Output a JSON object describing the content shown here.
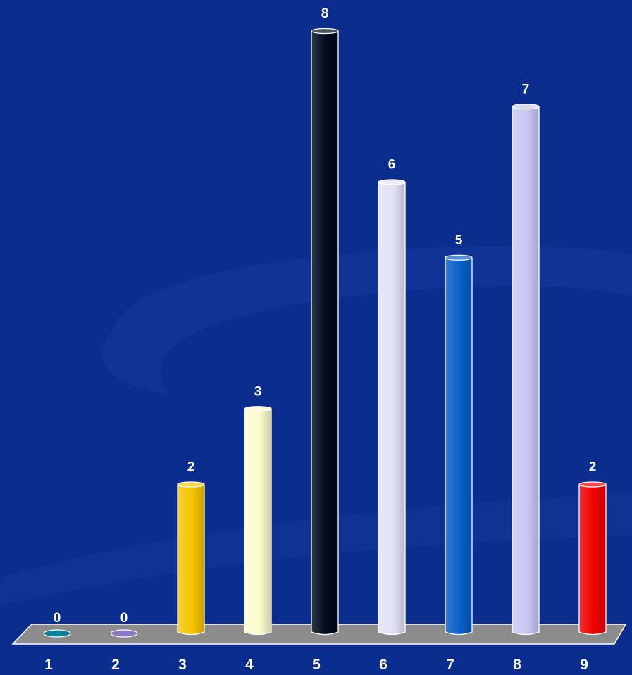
{
  "chart_data": {
    "type": "bar",
    "categories": [
      "1",
      "2",
      "3",
      "4",
      "5",
      "6",
      "7",
      "8",
      "9"
    ],
    "values": [
      0,
      0,
      2,
      3,
      8,
      6,
      5,
      7,
      2
    ],
    "data_labels": [
      "0",
      "0",
      "2",
      "3",
      "8",
      "6",
      "5",
      "7",
      "2"
    ],
    "colors": [
      "#0e7f98",
      "#8a79c8",
      "#f6c400",
      "#fbfbcd",
      "#000a1e",
      "#e2e2f6",
      "#0a5fc8",
      "#c8c8f2",
      "#f00000"
    ],
    "ylim": [
      0,
      8
    ],
    "grid": false,
    "legend": "none",
    "title": "",
    "xlabel": "",
    "ylabel": "",
    "style": "3d-cylinder"
  },
  "theme": {
    "background": "#0a2d8e",
    "floor": "#8c8c8c",
    "text": "#ffffff"
  }
}
